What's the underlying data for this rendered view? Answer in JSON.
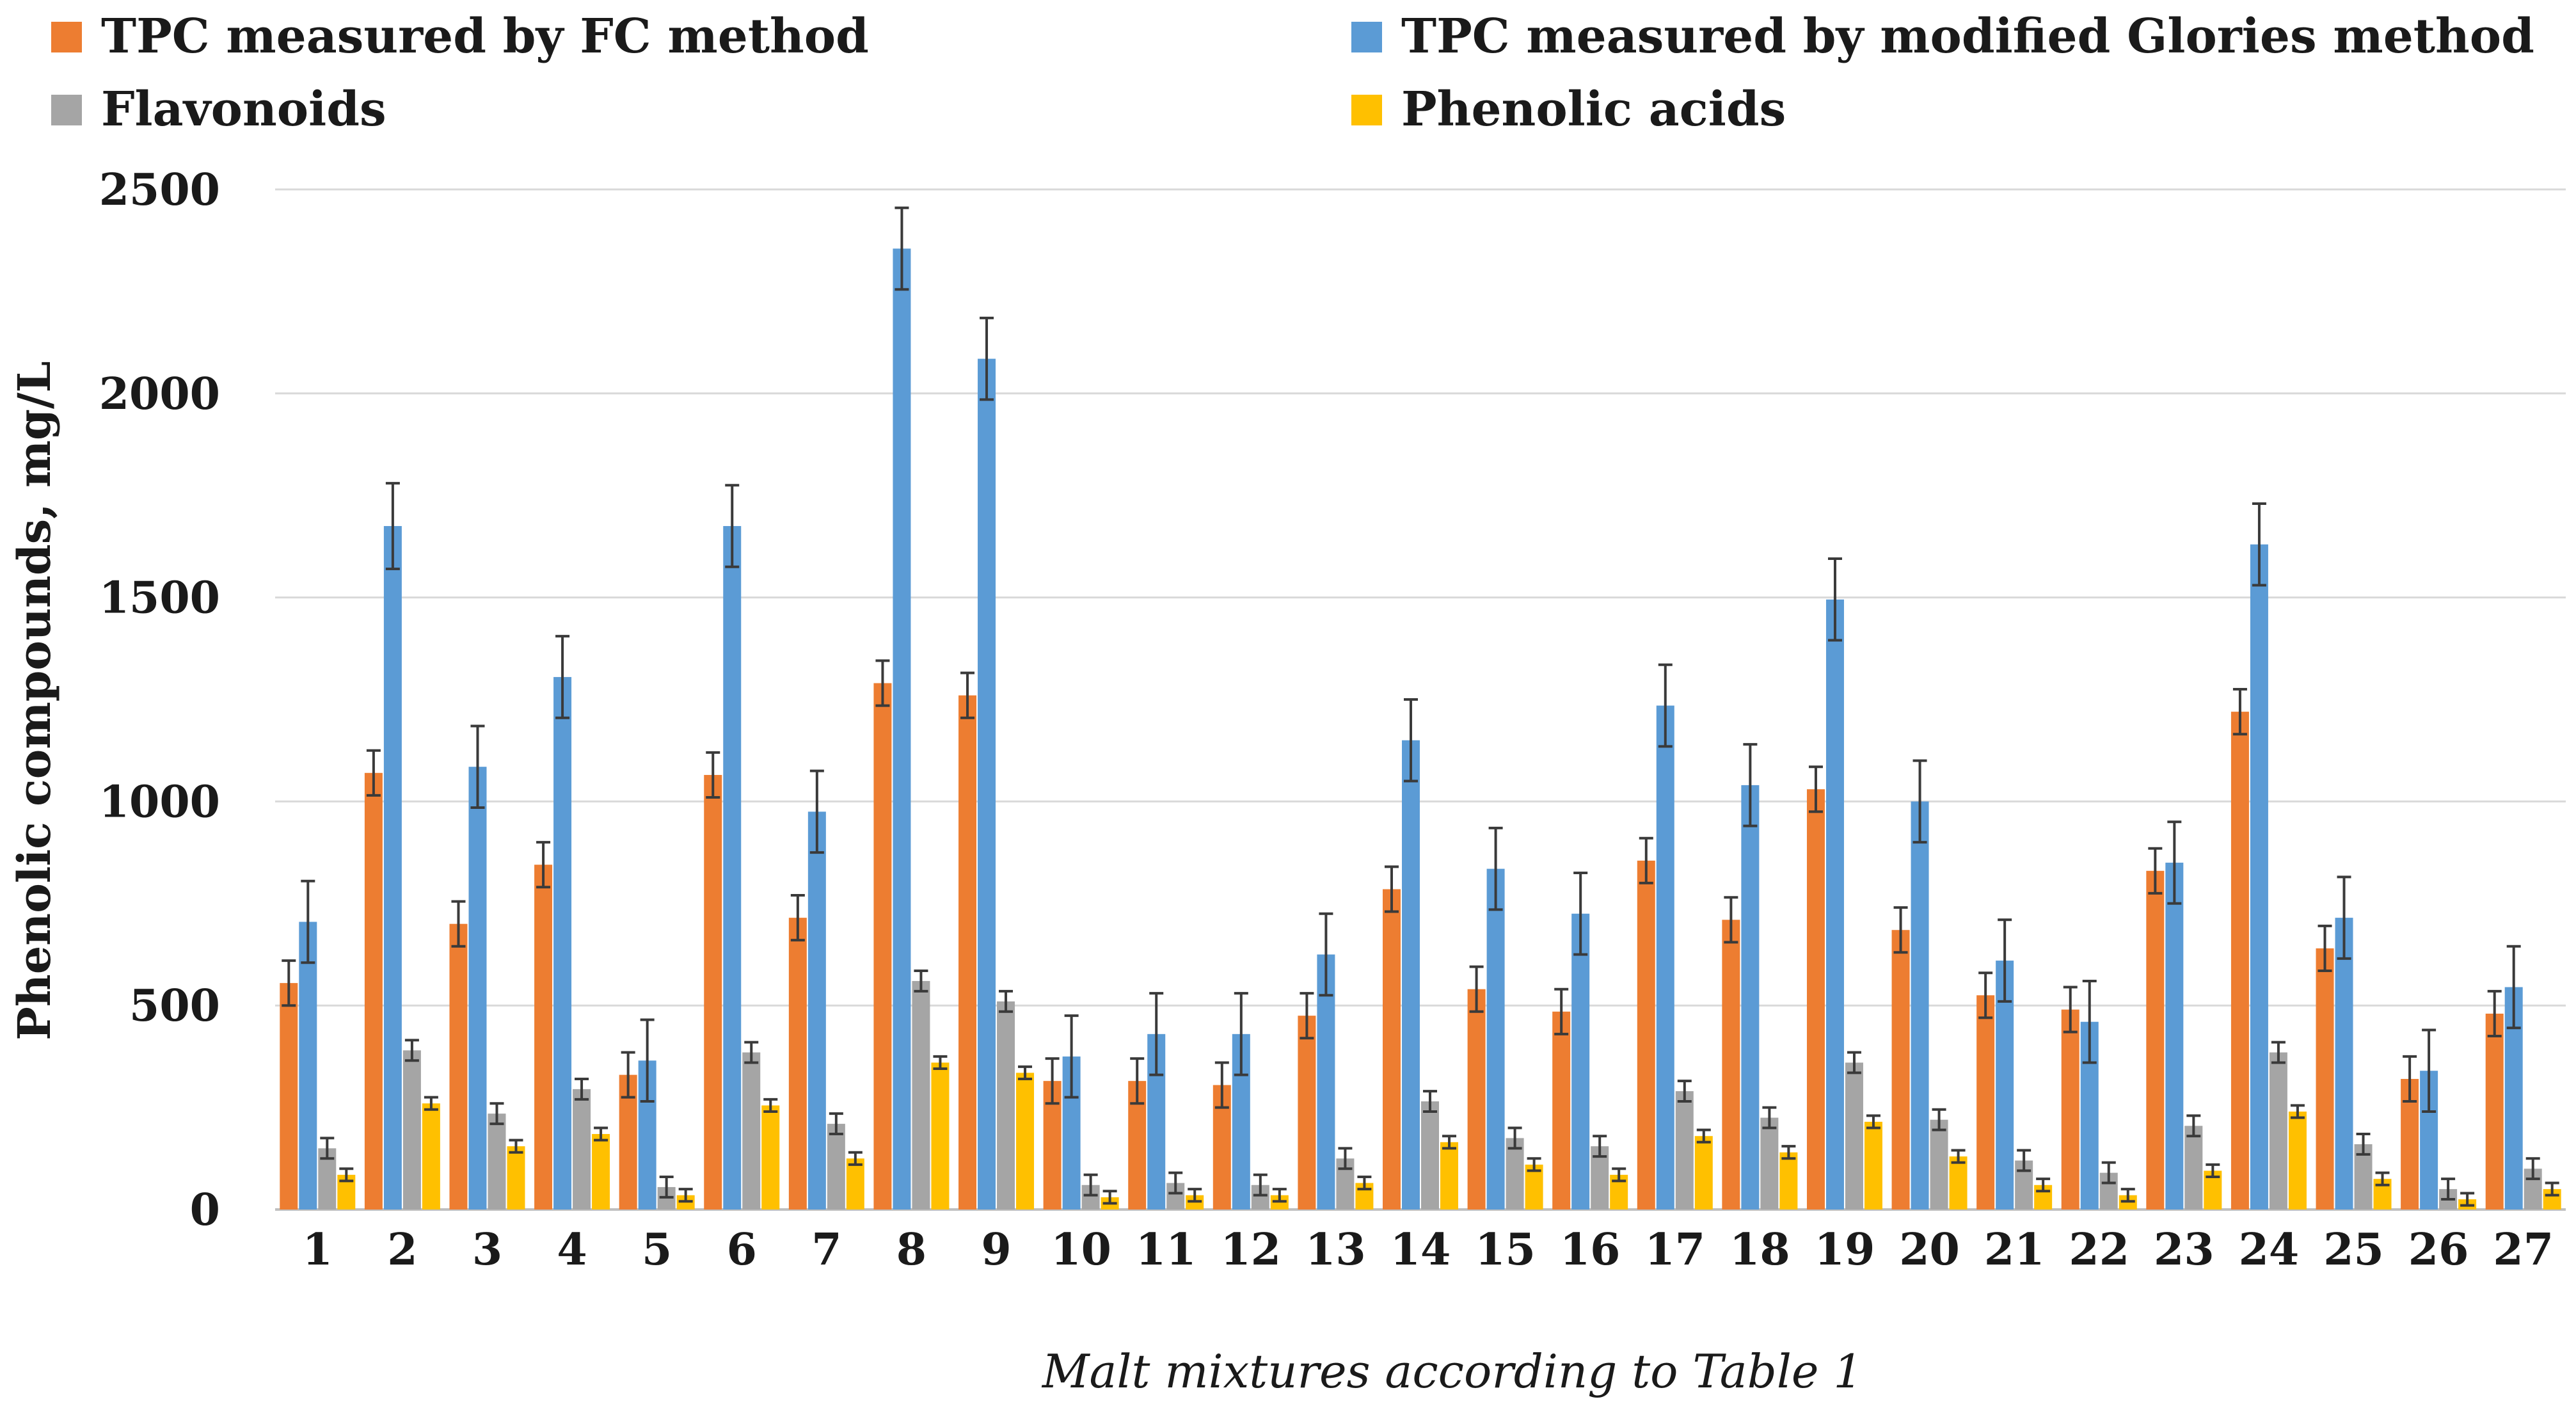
{
  "chart_data": {
    "type": "bar",
    "title": "",
    "ylabel": "Phenolic compounds, mg/L",
    "xlabel": "Malt mixtures according to Table 1",
    "ylim": [
      0,
      2500
    ],
    "yticks": [
      0,
      500,
      1000,
      1500,
      2000,
      2500
    ],
    "grid": true,
    "legend_position": "top",
    "categories": [
      "1",
      "2",
      "3",
      "4",
      "5",
      "6",
      "7",
      "8",
      "9",
      "10",
      "11",
      "12",
      "13",
      "14",
      "15",
      "16",
      "17",
      "18",
      "19",
      "20",
      "21",
      "22",
      "23",
      "24",
      "25",
      "26",
      "27"
    ],
    "series": [
      {
        "name": "TPC measured by FC method",
        "color": "#ed7d31",
        "values": [
          555,
          1070,
          700,
          845,
          330,
          1065,
          715,
          1290,
          1260,
          315,
          315,
          305,
          475,
          785,
          540,
          485,
          855,
          710,
          1030,
          685,
          525,
          490,
          830,
          1220,
          640,
          320,
          480
        ],
        "errors": [
          55,
          55,
          55,
          55,
          55,
          55,
          55,
          55,
          55,
          55,
          55,
          55,
          55,
          55,
          55,
          55,
          55,
          55,
          55,
          55,
          55,
          55,
          55,
          55,
          55,
          55,
          55
        ]
      },
      {
        "name": "TPC measured by modified Glories method",
        "color": "#5b9bd5",
        "values": [
          705,
          1675,
          1085,
          1305,
          365,
          1675,
          975,
          2355,
          2085,
          375,
          430,
          430,
          625,
          1150,
          835,
          725,
          1235,
          1040,
          1495,
          1000,
          610,
          460,
          850,
          1630,
          715,
          340,
          545
        ],
        "errors": [
          100,
          105,
          100,
          100,
          100,
          100,
          100,
          100,
          100,
          100,
          100,
          100,
          100,
          100,
          100,
          100,
          100,
          100,
          100,
          100,
          100,
          100,
          100,
          100,
          100,
          100,
          100
        ]
      },
      {
        "name": "Flavonoids",
        "color": "#a5a5a5",
        "values": [
          150,
          390,
          235,
          295,
          55,
          385,
          210,
          560,
          510,
          60,
          65,
          60,
          125,
          265,
          175,
          155,
          290,
          225,
          360,
          220,
          120,
          90,
          205,
          385,
          160,
          50,
          100
        ],
        "errors": [
          25,
          25,
          25,
          25,
          25,
          25,
          25,
          25,
          25,
          25,
          25,
          25,
          25,
          25,
          25,
          25,
          25,
          25,
          25,
          25,
          25,
          25,
          25,
          25,
          25,
          25,
          25
        ]
      },
      {
        "name": "Phenolic acids",
        "color": "#ffc000",
        "values": [
          85,
          260,
          155,
          185,
          35,
          255,
          125,
          360,
          335,
          30,
          35,
          35,
          65,
          165,
          110,
          85,
          180,
          140,
          215,
          130,
          60,
          35,
          95,
          240,
          75,
          25,
          50
        ],
        "errors": [
          15,
          15,
          15,
          15,
          15,
          15,
          15,
          15,
          15,
          15,
          15,
          15,
          15,
          15,
          15,
          15,
          15,
          15,
          15,
          15,
          15,
          15,
          15,
          15,
          15,
          15,
          15
        ]
      }
    ]
  }
}
